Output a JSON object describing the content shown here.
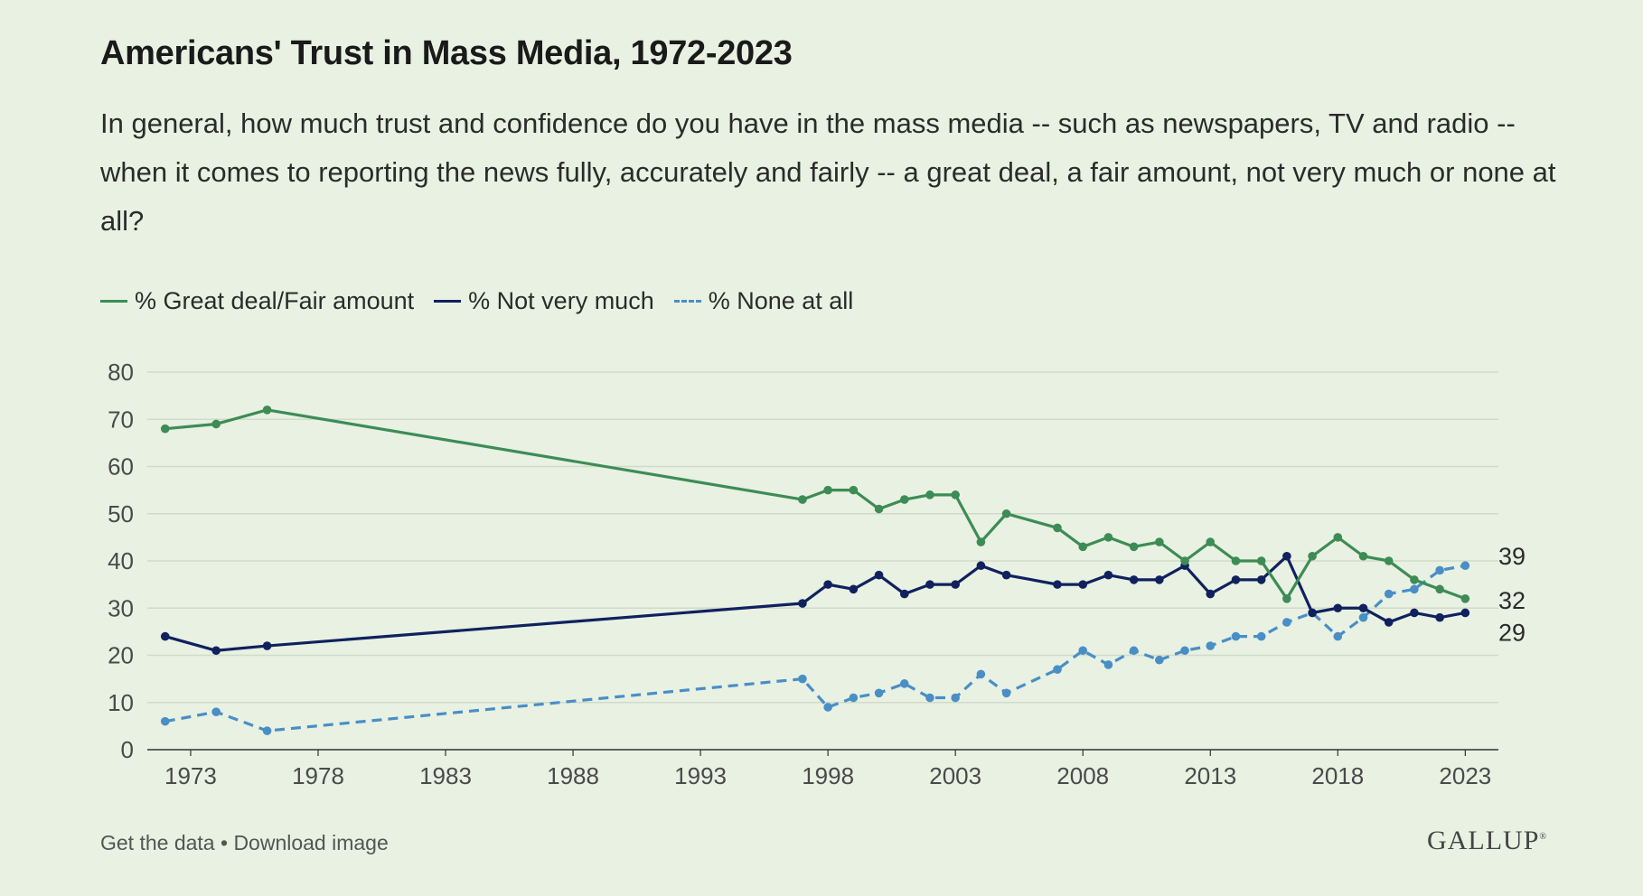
{
  "header": {
    "title": "Americans' Trust in Mass Media, 1972-2023",
    "subtitle": "In general, how much trust and confidence do you have in the mass media -- such as newspapers, TV and radio -- when it comes to reporting the news fully, accurately and fairly -- a great deal, a fair amount, not very much or none at all?"
  },
  "colors": {
    "great_deal": "#3d8c55",
    "not_very_much": "#10215e",
    "none_at_all": "#4a8ec6",
    "grid": "#cfdcc8",
    "axis": "#4a4a4a"
  },
  "chart_data": {
    "type": "line",
    "ylim": [
      0,
      80
    ],
    "yticks": [
      0,
      10,
      20,
      30,
      40,
      50,
      60,
      70,
      80
    ],
    "xlim": [
      1971.3,
      2024.3
    ],
    "xticks": [
      1973,
      1978,
      1983,
      1988,
      1993,
      1998,
      2003,
      2008,
      2013,
      2018,
      2023
    ],
    "grid": true,
    "legend_position": "top-left",
    "x": [
      1972,
      1974,
      1976,
      1997,
      1998,
      1999,
      2000,
      2001,
      2002,
      2003,
      2004,
      2005,
      2007,
      2008,
      2009,
      2010,
      2011,
      2012,
      2013,
      2014,
      2015,
      2016,
      2017,
      2018,
      2019,
      2020,
      2021,
      2022,
      2023
    ],
    "series": [
      {
        "name": "% Great deal/Fair amount",
        "color_key": "great_deal",
        "dashed": false,
        "values": [
          68,
          69,
          72,
          53,
          55,
          55,
          51,
          53,
          54,
          54,
          44,
          50,
          47,
          43,
          45,
          43,
          44,
          40,
          44,
          40,
          40,
          32,
          41,
          45,
          41,
          40,
          36,
          34,
          32
        ],
        "end_label": "32"
      },
      {
        "name": "% Not very much",
        "color_key": "not_very_much",
        "dashed": false,
        "values": [
          24,
          21,
          22,
          31,
          35,
          34,
          37,
          33,
          35,
          35,
          39,
          37,
          35,
          35,
          37,
          36,
          36,
          39,
          33,
          36,
          36,
          41,
          29,
          30,
          30,
          27,
          29,
          28,
          29
        ],
        "end_label": "29"
      },
      {
        "name": "% None at all",
        "color_key": "none_at_all",
        "dashed": true,
        "values": [
          6,
          8,
          4,
          15,
          9,
          11,
          12,
          14,
          11,
          11,
          16,
          12,
          17,
          21,
          18,
          21,
          19,
          21,
          22,
          24,
          24,
          27,
          29,
          24,
          28,
          33,
          34,
          38,
          39
        ],
        "end_label": "39"
      }
    ]
  },
  "footer": {
    "get_data": "Get the data",
    "separator": " • ",
    "download": "Download image"
  },
  "brand": {
    "logo_text": "GALLUP",
    "logo_mark": "®"
  }
}
